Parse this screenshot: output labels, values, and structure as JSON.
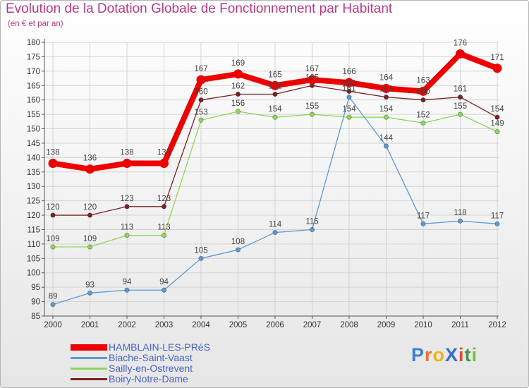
{
  "header": {
    "title": "Evolution de la Dotation Globale de Fonctionnement par Habitant",
    "subtitle": "(en € et par an)"
  },
  "logo": {
    "text": "ProXiti",
    "letters": [
      "P",
      "r",
      "o",
      "X",
      "i",
      "t",
      "i"
    ]
  },
  "colors": {
    "title": "#b83a82",
    "legend_text": "#4a63c4",
    "grid": "#d3d3d3",
    "axis": "#555555",
    "tick_text": "#333333",
    "label_text": "#444444"
  },
  "chart_data": {
    "type": "line",
    "title": "Evolution de la Dotation Globale de Fonctionnement par Habitant",
    "subtitle": "(en € et par an)",
    "xlabel": "",
    "ylabel": "",
    "categories": [
      "2000",
      "2001",
      "2002",
      "2003",
      "2004",
      "2005",
      "2006",
      "2007",
      "2008",
      "2009",
      "2010",
      "2011",
      "2012"
    ],
    "ylim": [
      85,
      180
    ],
    "yticks": [
      85,
      90,
      95,
      100,
      105,
      110,
      115,
      120,
      125,
      130,
      135,
      140,
      145,
      150,
      155,
      160,
      165,
      170,
      175,
      180
    ],
    "grid": true,
    "legend_position": "bottom-left",
    "series": [
      {
        "name": "HAMBLAIN-LES-PRéS",
        "color": "#ee0000",
        "values": [
          138,
          136,
          138,
          138,
          167,
          169,
          165,
          167,
          166,
          164,
          163,
          176,
          171
        ]
      },
      {
        "name": "Biache-Saint-Vaast",
        "color": "#5b9ad5",
        "values": [
          89,
          93,
          94,
          94,
          105,
          108,
          114,
          115,
          161,
          144,
          117,
          118,
          117
        ]
      },
      {
        "name": "Sailly-en-Ostrevent",
        "color": "#8ed65a",
        "values": [
          109,
          109,
          113,
          113,
          153,
          156,
          154,
          155,
          154,
          154,
          152,
          155,
          149
        ]
      },
      {
        "name": "Boiry-Notre-Dame",
        "color": "#7a2222",
        "values": [
          120,
          120,
          123,
          123,
          160,
          162,
          162,
          165,
          163,
          161,
          160,
          161,
          154
        ]
      }
    ]
  }
}
